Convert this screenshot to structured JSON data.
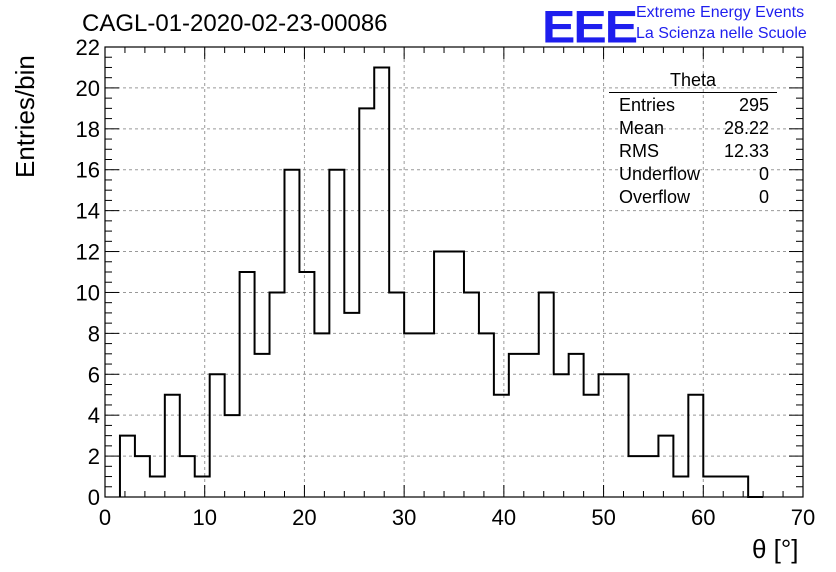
{
  "header": {
    "title": "CAGL-01-2020-02-23-00086",
    "logo_text": "EEE",
    "logo_line1": "Extreme Energy Events",
    "logo_line2": "La Scienza nelle Scuole"
  },
  "stats": {
    "title": "Theta",
    "rows": [
      {
        "label": "Entries",
        "value": "295"
      },
      {
        "label": "Mean",
        "value": "28.22"
      },
      {
        "label": "RMS",
        "value": "12.33"
      },
      {
        "label": "Underflow",
        "value": "0"
      },
      {
        "label": "Overflow",
        "value": "0"
      }
    ]
  },
  "colors": {
    "logo": "#1e1eee",
    "line": "#000000",
    "grid": "#999999"
  },
  "chart_data": {
    "type": "bar",
    "style": "step-histogram",
    "xlabel": "θ [°]",
    "ylabel": "Entries/bin",
    "xlim": [
      0,
      70
    ],
    "ylim": [
      0,
      22
    ],
    "grid": true,
    "bin_width": 1.5,
    "bin_start": 1.5,
    "values": [
      3,
      2,
      1,
      5,
      2,
      1,
      6,
      4,
      11,
      7,
      10,
      16,
      11,
      8,
      16,
      9,
      19,
      21,
      10,
      8,
      8,
      12,
      12,
      10,
      8,
      5,
      7,
      7,
      10,
      6,
      7,
      5,
      6,
      6,
      2,
      2,
      3,
      1,
      5,
      1,
      1,
      1,
      0
    ],
    "x_ticks": [
      0,
      10,
      20,
      30,
      40,
      50,
      60,
      70
    ],
    "y_ticks": [
      0,
      2,
      4,
      6,
      8,
      10,
      12,
      14,
      16,
      18,
      20,
      22
    ]
  }
}
